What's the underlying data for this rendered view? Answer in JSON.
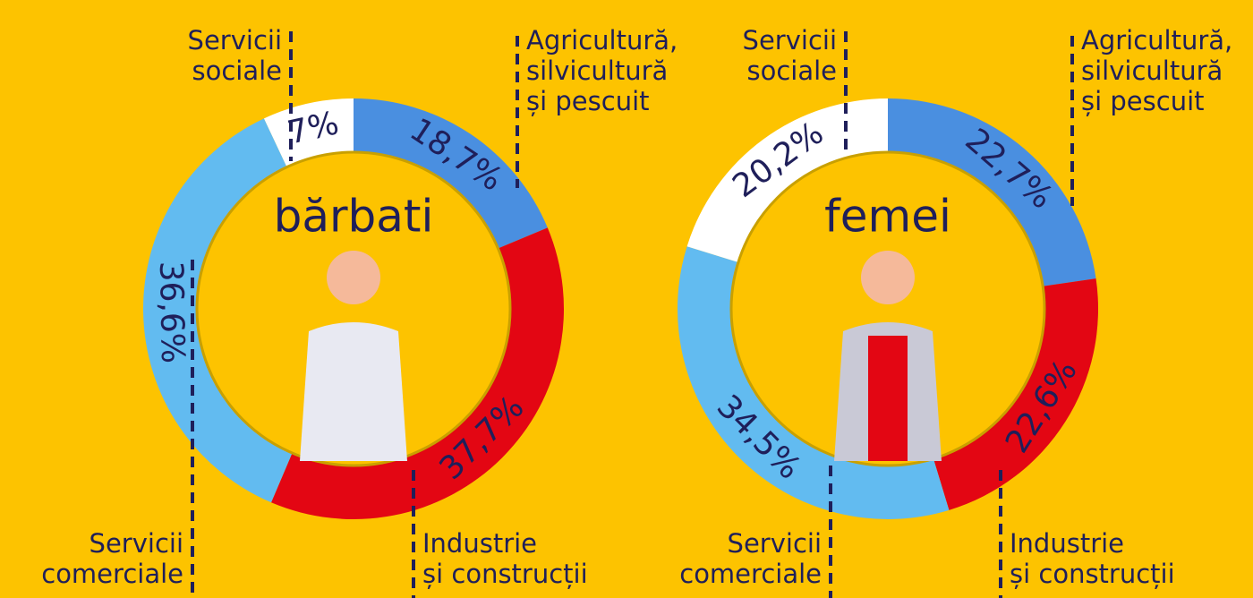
{
  "chart_data": [
    {
      "type": "donut",
      "title": "bărbati",
      "categories": [
        "Agricultură,\nsilvicultură\nși pescuit",
        "Industrie\nși construcții",
        "Servicii\ncomerciale",
        "Servicii\nsociale"
      ],
      "values": [
        18.7,
        37.7,
        36.6,
        7
      ],
      "value_labels": [
        "18,7%",
        "37,7%",
        "36,6%",
        "7%"
      ],
      "colors": [
        "#4a8fe0",
        "#e30613",
        "#62bbf0",
        "#ffffff"
      ]
    },
    {
      "type": "donut",
      "title": "femei",
      "categories": [
        "Agricultură,\nsilvicultură\nși pescuit",
        "Industrie\nși construcții",
        "Servicii\ncomerciale",
        "Servicii\nsociale"
      ],
      "values": [
        22.7,
        22.6,
        34.5,
        20.2
      ],
      "value_labels": [
        "22,7%",
        "22,6%",
        "34,5%",
        "20,2%"
      ],
      "colors": [
        "#4a8fe0",
        "#e30613",
        "#62bbf0",
        "#ffffff"
      ]
    }
  ]
}
